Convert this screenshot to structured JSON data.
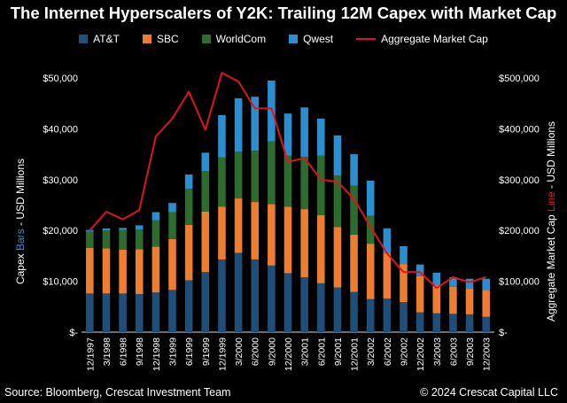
{
  "header": {
    "title": "The Internet Hyperscalers of Y2K: Trailing 12M Capex with Market Cap"
  },
  "footer": {
    "source": "Source: Bloomberg, Crescat Investment Team",
    "copyright": "© 2024 Crescat Capital LLC"
  },
  "axis_labels": {
    "left_prefix": "Capex ",
    "left_highlight": "Bars",
    "left_suffix": " - USD Millions",
    "right_prefix": "Aggregate Market Cap ",
    "right_highlight": "Line",
    "right_suffix": " - USD Millions"
  },
  "colors": {
    "att": "#1f4e79",
    "sbc": "#ed7d31",
    "worldcom": "#2e6b2e",
    "qwest": "#2b8fcf",
    "line": "#e0141c",
    "left_label_highlight": "#2b8fcf",
    "right_label_highlight": "#e0141c"
  },
  "chart_data": {
    "type": "bar",
    "stacked": true,
    "title": "The Internet Hyperscalers of Y2K: Trailing 12M Capex with Market Cap",
    "ylabel": "Capex Bars - USD Millions",
    "y2label": "Aggregate Market Cap Line - USD Millions",
    "ylim": [
      0,
      50000
    ],
    "y2lim": [
      0,
      500000
    ],
    "yticks": [
      "$-",
      "$10,000",
      "$20,000",
      "$30,000",
      "$40,000",
      "$50,000"
    ],
    "y2ticks": [
      "$-",
      "$100,000",
      "$200,000",
      "$300,000",
      "$400,000",
      "$500,000"
    ],
    "legend_position": "top",
    "x": [
      "12/1997",
      "3/1998",
      "6/1998",
      "9/1998",
      "12/1998",
      "3/1999",
      "6/1999",
      "9/1999",
      "12/1999",
      "3/2000",
      "6/2000",
      "9/2000",
      "12/2000",
      "3/2001",
      "6/2001",
      "9/2001",
      "12/2001",
      "3/2002",
      "6/2002",
      "9/2002",
      "12/2002",
      "3/2003",
      "6/2003",
      "9/2003",
      "12/2003"
    ],
    "x_tick_labels": [
      "12/1997",
      "3/1998",
      "6/1998",
      "9/1998",
      "12/1998",
      "3/1999",
      "6/1999",
      "9/1999",
      "12/1999",
      "3/2000",
      "6/2000",
      "9/2000",
      "12/2000",
      "3/2001",
      "6/2001",
      "9/2001",
      "12/2001",
      "3/2002",
      "6/2002",
      "9/2002",
      "12/2002",
      "3/2003",
      "6/2003",
      "9/2003",
      "12/2003"
    ],
    "series": [
      {
        "name": "AT&T",
        "type": "bar",
        "color_key": "att",
        "values": [
          7600,
          7600,
          7600,
          7500,
          7800,
          8300,
          10200,
          11800,
          14300,
          15600,
          14300,
          13100,
          11600,
          10800,
          9600,
          8800,
          7900,
          6500,
          6600,
          5900,
          3900,
          3700,
          3600,
          3500,
          3000
        ]
      },
      {
        "name": "SBC",
        "type": "bar",
        "color_key": "sbc",
        "values": [
          9000,
          8900,
          8600,
          8800,
          9000,
          10000,
          10900,
          11900,
          10400,
          10700,
          11300,
          12100,
          13100,
          13400,
          13400,
          11900,
          11300,
          10900,
          8900,
          7500,
          7100,
          5600,
          5300,
          5100,
          5300
        ]
      },
      {
        "name": "WorldCom",
        "type": "bar",
        "color_key": "worldcom",
        "values": [
          3200,
          3500,
          3900,
          3900,
          5200,
          5300,
          7100,
          8000,
          9700,
          9200,
          10100,
          12300,
          10000,
          10300,
          11700,
          10100,
          9600,
          5500,
          0,
          0,
          0,
          0,
          0,
          0,
          0
        ]
      },
      {
        "name": "Qwest",
        "type": "bar",
        "color_key": "qwest",
        "values": [
          300,
          400,
          400,
          800,
          1600,
          1800,
          2800,
          3600,
          8300,
          10500,
          10600,
          12000,
          8300,
          9700,
          7300,
          7900,
          6200,
          6900,
          4900,
          3500,
          2300,
          2400,
          1900,
          1900,
          2200
        ]
      },
      {
        "name": "Aggregate Market Cap",
        "type": "line",
        "axis": "right",
        "color_key": "line",
        "values": [
          200000,
          237000,
          222000,
          240000,
          385000,
          420000,
          473000,
          398000,
          510000,
          493000,
          440000,
          440000,
          335000,
          342000,
          300000,
          296000,
          262000,
          207000,
          155000,
          118000,
          118000,
          87000,
          108000,
          98000,
          108000
        ]
      }
    ]
  }
}
